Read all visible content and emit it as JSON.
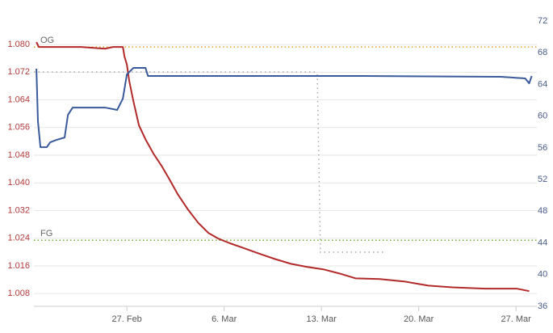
{
  "chart_data": {
    "type": "line",
    "xlim": [
      51.31,
      87.5
    ],
    "xticks": [
      {
        "value": 58,
        "label": "27. Feb"
      },
      {
        "value": 65,
        "label": "6. Mar"
      },
      {
        "value": 72,
        "label": "13. Mar"
      },
      {
        "value": 79,
        "label": "20. Mar"
      },
      {
        "value": 86,
        "label": "27. Mar"
      }
    ],
    "ylim": [
      1.0043,
      1.0868
    ],
    "yticks": [
      {
        "value": 1.008,
        "label": "1.008"
      },
      1.016,
      1.024,
      1.032,
      {
        "value": 1.04,
        "label": "1.040"
      },
      1.048,
      1.056,
      1.064,
      1.072,
      {
        "value": 1.08,
        "label": "1.080"
      }
    ],
    "y2lim": [
      36,
      72
    ],
    "y2ticks": [
      36,
      40,
      44,
      48,
      52,
      56,
      60,
      64,
      68,
      72
    ],
    "grid": true,
    "annotations": [
      {
        "label": "OG",
        "value": 1.0793,
        "color": "#e0a030"
      },
      {
        "label": "FG",
        "value": 1.0234,
        "color": "#7ab030"
      }
    ],
    "series": [
      {
        "color": "#b22a2a",
        "x": [
          51.49,
          51.66,
          54.69,
          56.43,
          57.01,
          57.71,
          57.83,
          58.0,
          58.17,
          58.47,
          58.87,
          59.34,
          59.92,
          60.5,
          61.08,
          61.66,
          62.36,
          63.12,
          63.87,
          64.57,
          65.44,
          66.31,
          67.48,
          68.64,
          69.8,
          70.97,
          72.13,
          73.29,
          74.45,
          76.2,
          77.94,
          79.69,
          81.43,
          83.76,
          86.08,
          86.95
        ],
        "values": [
          1.0807,
          1.0793,
          1.0793,
          1.0788,
          1.0793,
          1.0793,
          1.0765,
          1.0742,
          1.0695,
          1.0636,
          1.0566,
          1.0526,
          1.0484,
          1.0449,
          1.0409,
          1.0367,
          1.0325,
          1.0285,
          1.0255,
          1.0239,
          1.0225,
          1.0213,
          1.0196,
          1.018,
          1.0166,
          1.0157,
          1.015,
          1.0138,
          1.0124,
          1.0122,
          1.0115,
          1.0103,
          1.0098,
          1.0094,
          1.0094,
          1.0087
        ]
      },
      {
        "color": "#3a5a9a",
        "axis": "y2",
        "x": [
          51.49,
          51.6,
          51.78,
          52.24,
          52.48,
          52.94,
          53.52,
          53.76,
          54.1,
          55.27,
          56.43,
          57.3,
          57.71,
          58.0,
          58.47,
          59.34,
          59.52,
          66.31,
          75.03,
          84.92,
          86.66,
          86.95,
          87.13
        ],
        "values": [
          65.98,
          59.35,
          56.08,
          56.08,
          56.7,
          57.0,
          57.3,
          60.16,
          61.08,
          61.08,
          61.08,
          60.78,
          62.2,
          65.27,
          66.08,
          66.08,
          65.06,
          65.06,
          65.06,
          64.96,
          64.76,
          64.14,
          65.06
        ]
      }
    ]
  }
}
